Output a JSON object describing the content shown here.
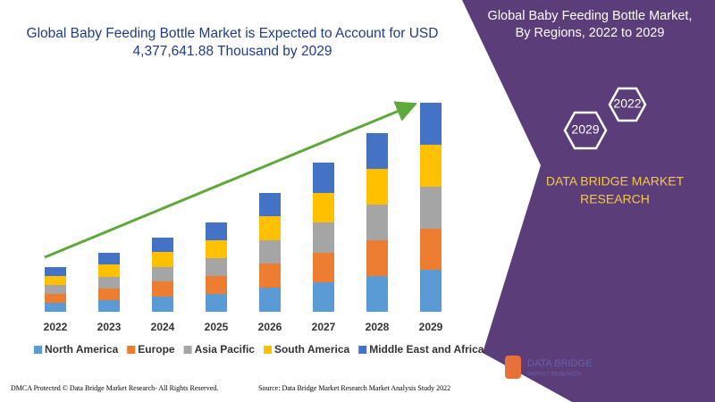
{
  "chart_data": {
    "type": "bar",
    "stacked": true,
    "title": "Global Baby Feeding Bottle Market is Expected to Account for USD 4,377,641.88 Thousand by 2029",
    "categories": [
      "2022",
      "2023",
      "2024",
      "2025",
      "2026",
      "2027",
      "2028",
      "2029"
    ],
    "series": [
      {
        "name": "North America",
        "color": "#5b9bd5",
        "values": [
          10,
          13,
          17,
          20,
          27,
          33,
          40,
          47
        ]
      },
      {
        "name": "Europe",
        "color": "#ed7d31",
        "values": [
          10,
          13,
          17,
          20,
          27,
          33,
          40,
          46
        ]
      },
      {
        "name": "Asia Pacific",
        "color": "#a5a5a5",
        "values": [
          10,
          13,
          16,
          20,
          26,
          34,
          40,
          47
        ]
      },
      {
        "name": "South America",
        "color": "#ffc000",
        "values": [
          10,
          14,
          17,
          20,
          27,
          33,
          40,
          47
        ]
      },
      {
        "name": "Middle East and Africa",
        "color": "#4472c4",
        "values": [
          10,
          13,
          16,
          20,
          26,
          34,
          40,
          47
        ]
      }
    ],
    "ylim": [
      0,
      240
    ]
  },
  "panel": {
    "heading": [
      "Global Baby Feeding Bottle Market,",
      "By Regions, 2022 to 2029"
    ],
    "hexagons": [
      "2022",
      "2029"
    ],
    "brand": [
      "DATA BRIDGE MARKET",
      "RESEARCH"
    ]
  },
  "logo": {
    "name": "DATA BRIDGE",
    "tagline": "MARKET RESEARCH"
  },
  "footer": {
    "left": "DMCA Protected © Data Bridge Market Research- All Rights Reserved.",
    "right": "Source: Data Bridge Market Research Market Analysis Study 2022"
  }
}
